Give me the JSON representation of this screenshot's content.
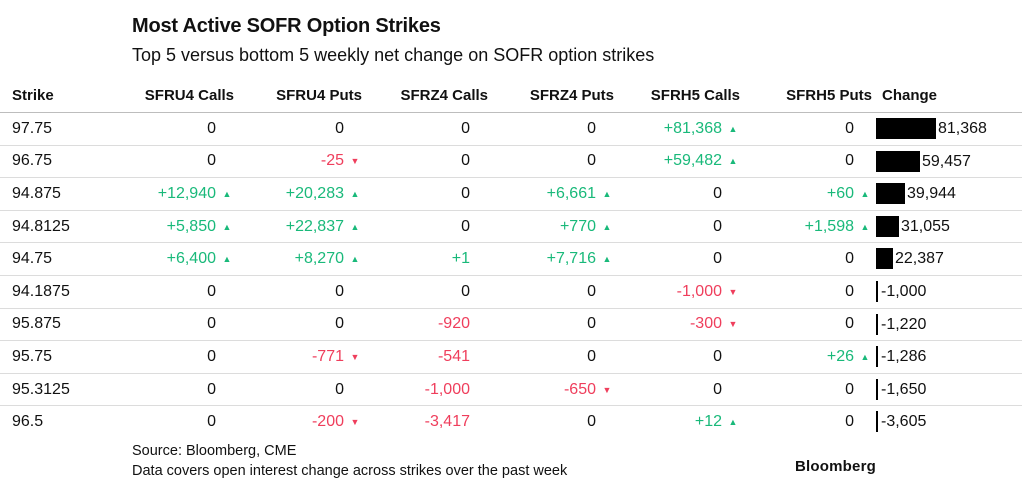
{
  "title": "Most Active SOFR Option Strikes",
  "subtitle": "Top 5 versus bottom 5 weekly net change on SOFR option strikes",
  "source": "Source: Bloomberg, CME",
  "note": "Data covers open interest change across strikes over the past week",
  "logo": "Bloomberg",
  "colors": {
    "positive": "#19b97a",
    "negative": "#ef3e5c",
    "bar": "#000000"
  },
  "chart_data": {
    "type": "table",
    "columns": [
      "Strike",
      "SFRU4 Calls",
      "SFRU4 Puts",
      "SFRZ4 Calls",
      "SFRZ4 Puts",
      "SFRH5 Calls",
      "SFRH5 Puts",
      "Change"
    ],
    "rows": [
      {
        "strike": "97.75",
        "cells": [
          {
            "text": "0",
            "dir": "none"
          },
          {
            "text": "0",
            "dir": "none"
          },
          {
            "text": "0",
            "dir": "none"
          },
          {
            "text": "0",
            "dir": "none"
          },
          {
            "text": "+81,368",
            "dir": "up"
          },
          {
            "text": "0",
            "dir": "none"
          }
        ],
        "change": 81368,
        "change_label": "81,368"
      },
      {
        "strike": "96.75",
        "cells": [
          {
            "text": "0",
            "dir": "none"
          },
          {
            "text": "-25",
            "dir": "down"
          },
          {
            "text": "0",
            "dir": "none"
          },
          {
            "text": "0",
            "dir": "none"
          },
          {
            "text": "+59,482",
            "dir": "up"
          },
          {
            "text": "0",
            "dir": "none"
          }
        ],
        "change": 59457,
        "change_label": "59,457"
      },
      {
        "strike": "94.875",
        "cells": [
          {
            "text": "+12,940",
            "dir": "up"
          },
          {
            "text": "+20,283",
            "dir": "up"
          },
          {
            "text": "0",
            "dir": "none"
          },
          {
            "text": "+6,661",
            "dir": "up"
          },
          {
            "text": "0",
            "dir": "none"
          },
          {
            "text": "+60",
            "dir": "up"
          }
        ],
        "change": 39944,
        "change_label": "39,944"
      },
      {
        "strike": "94.8125",
        "cells": [
          {
            "text": "+5,850",
            "dir": "up"
          },
          {
            "text": "+22,837",
            "dir": "up"
          },
          {
            "text": "0",
            "dir": "none"
          },
          {
            "text": "+770",
            "dir": "up"
          },
          {
            "text": "0",
            "dir": "none"
          },
          {
            "text": "+1,598",
            "dir": "up"
          }
        ],
        "change": 31055,
        "change_label": "31,055"
      },
      {
        "strike": "94.75",
        "cells": [
          {
            "text": "+6,400",
            "dir": "up"
          },
          {
            "text": "+8,270",
            "dir": "up"
          },
          {
            "text": "+1",
            "dir": "pos-noarrow"
          },
          {
            "text": "+7,716",
            "dir": "up"
          },
          {
            "text": "0",
            "dir": "none"
          },
          {
            "text": "0",
            "dir": "none"
          }
        ],
        "change": 22387,
        "change_label": "22,387"
      },
      {
        "strike": "94.1875",
        "cells": [
          {
            "text": "0",
            "dir": "none"
          },
          {
            "text": "0",
            "dir": "none"
          },
          {
            "text": "0",
            "dir": "none"
          },
          {
            "text": "0",
            "dir": "none"
          },
          {
            "text": "-1,000",
            "dir": "down"
          },
          {
            "text": "0",
            "dir": "none"
          }
        ],
        "change": -1000,
        "change_label": "-1,000"
      },
      {
        "strike": "95.875",
        "cells": [
          {
            "text": "0",
            "dir": "none"
          },
          {
            "text": "0",
            "dir": "none"
          },
          {
            "text": "-920",
            "dir": "neg-noarrow"
          },
          {
            "text": "0",
            "dir": "none"
          },
          {
            "text": "-300",
            "dir": "down"
          },
          {
            "text": "0",
            "dir": "none"
          }
        ],
        "change": -1220,
        "change_label": "-1,220"
      },
      {
        "strike": "95.75",
        "cells": [
          {
            "text": "0",
            "dir": "none"
          },
          {
            "text": "-771",
            "dir": "down"
          },
          {
            "text": "-541",
            "dir": "neg-noarrow"
          },
          {
            "text": "0",
            "dir": "none"
          },
          {
            "text": "0",
            "dir": "none"
          },
          {
            "text": "+26",
            "dir": "up"
          }
        ],
        "change": -1286,
        "change_label": "-1,286"
      },
      {
        "strike": "95.3125",
        "cells": [
          {
            "text": "0",
            "dir": "none"
          },
          {
            "text": "0",
            "dir": "none"
          },
          {
            "text": "-1,000",
            "dir": "neg-noarrow"
          },
          {
            "text": "-650",
            "dir": "down"
          },
          {
            "text": "0",
            "dir": "none"
          },
          {
            "text": "0",
            "dir": "none"
          }
        ],
        "change": -1650,
        "change_label": "-1,650"
      },
      {
        "strike": "96.5",
        "cells": [
          {
            "text": "0",
            "dir": "none"
          },
          {
            "text": "-200",
            "dir": "down"
          },
          {
            "text": "-3,417",
            "dir": "neg-noarrow"
          },
          {
            "text": "0",
            "dir": "none"
          },
          {
            "text": "+12",
            "dir": "up"
          },
          {
            "text": "0",
            "dir": "none"
          }
        ],
        "change": -3605,
        "change_label": "-3,605"
      }
    ]
  }
}
